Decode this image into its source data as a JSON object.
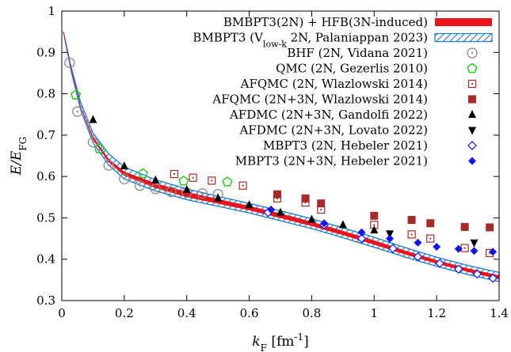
{
  "chart_data": {
    "type": "scatter",
    "title": "",
    "xlabel": {
      "var": "k",
      "sub": "F",
      "unit": " [fm",
      "sup": "-1",
      "close": "]"
    },
    "ylabel": {
      "var": "E/E",
      "sub": "FG"
    },
    "xlim": [
      0,
      1.4
    ],
    "ylim": [
      0.3,
      1.0
    ],
    "x_ticks": [
      0,
      0.2,
      0.4,
      0.6,
      0.8,
      1,
      1.2,
      1.4
    ],
    "x_tick_labels": [
      "0",
      "0.2",
      "0.4",
      "0.6",
      "0.8",
      "1",
      "1.2",
      "1.4"
    ],
    "y_ticks": [
      0.3,
      0.4,
      0.5,
      0.6,
      0.7,
      0.8,
      0.9,
      1
    ],
    "y_tick_labels": [
      "0.3",
      "0.4",
      "0.5",
      "0.6",
      "0.7",
      "0.8",
      "0.9",
      "1"
    ],
    "grid": false,
    "legend_position": "top-right",
    "bands": [
      {
        "name": "BMBPT3(2N) + HFB(3N-induced)",
        "color": "#e8141e",
        "style": "solid-band",
        "x": [
          0.005,
          0.03,
          0.06,
          0.1,
          0.15,
          0.2,
          0.3,
          0.4,
          0.5,
          0.6,
          0.7,
          0.8,
          0.9,
          1.0,
          1.1,
          1.2,
          1.3,
          1.4
        ],
        "upper": [
          0.95,
          0.86,
          0.77,
          0.695,
          0.642,
          0.611,
          0.583,
          0.562,
          0.545,
          0.528,
          0.51,
          0.49,
          0.468,
          0.445,
          0.42,
          0.397,
          0.377,
          0.36
        ],
        "lower": [
          0.95,
          0.86,
          0.77,
          0.69,
          0.636,
          0.603,
          0.573,
          0.551,
          0.535,
          0.519,
          0.5,
          0.481,
          0.459,
          0.436,
          0.412,
          0.39,
          0.37,
          0.352
        ]
      },
      {
        "name": "BMBPT3 (V",
        "name_sub": "low-k",
        "name_rest": " 2N, Palaniappan 2023)",
        "color": "#1f78d4",
        "style": "hatched-band",
        "x": [
          0.005,
          0.03,
          0.06,
          0.1,
          0.15,
          0.2,
          0.3,
          0.4,
          0.5,
          0.6,
          0.7,
          0.8,
          0.9,
          1.0,
          1.1,
          1.2,
          1.3,
          1.4
        ],
        "upper": [
          0.95,
          0.865,
          0.78,
          0.705,
          0.655,
          0.623,
          0.592,
          0.57,
          0.552,
          0.535,
          0.517,
          0.498,
          0.476,
          0.453,
          0.428,
          0.405,
          0.385,
          0.368
        ],
        "lower": [
          0.95,
          0.855,
          0.762,
          0.682,
          0.628,
          0.594,
          0.565,
          0.544,
          0.528,
          0.512,
          0.493,
          0.474,
          0.452,
          0.429,
          0.405,
          0.383,
          0.363,
          0.346
        ]
      }
    ],
    "series": [
      {
        "name": "BHF (2N, Vidana 2021)",
        "marker": "circle-dot",
        "color": "#8a8a8a",
        "x": [
          0.025,
          0.05,
          0.1,
          0.15,
          0.2,
          0.25,
          0.3,
          0.35,
          0.4,
          0.45,
          0.5
        ],
        "y": [
          0.875,
          0.757,
          0.683,
          0.627,
          0.594,
          0.578,
          0.57,
          0.563,
          0.561,
          0.559,
          0.557
        ]
      },
      {
        "name": "QMC (2N, Gezerlis 2010)",
        "marker": "pentagon-open",
        "color": "#1ec81e",
        "x": [
          0.045,
          0.12,
          0.26,
          0.39,
          0.53
        ],
        "y": [
          0.797,
          0.667,
          0.607,
          0.589,
          0.587
        ]
      },
      {
        "name": "AFQMC (2N, Wlazlowski 2014)",
        "marker": "square-open-dot",
        "color": "#a52a2a",
        "x": [
          0.36,
          0.42,
          0.48,
          0.58,
          0.69,
          0.78,
          0.83,
          1.0,
          1.12,
          1.18,
          1.29,
          1.37
        ],
        "y": [
          0.606,
          0.597,
          0.59,
          0.578,
          0.547,
          0.537,
          0.52,
          0.483,
          0.46,
          0.45,
          0.427,
          0.415
        ]
      },
      {
        "name": "AFQMC (2N+3N, Wlazlowski 2014)",
        "marker": "square-filled",
        "color": "#a52a2a",
        "x": [
          0.69,
          0.78,
          0.83,
          1.0,
          1.12,
          1.18,
          1.29,
          1.37
        ],
        "y": [
          0.557,
          0.547,
          0.535,
          0.505,
          0.495,
          0.487,
          0.478,
          0.477
        ]
      },
      {
        "name": "AFDMC (2N+3N, Gandolfi 2022)",
        "marker": "triangle-up",
        "color": "#000000",
        "x": [
          0.1,
          0.2,
          0.3,
          0.4,
          0.5,
          0.6,
          0.7,
          0.8,
          0.9,
          1.0
        ],
        "y": [
          0.737,
          0.625,
          0.591,
          0.568,
          0.547,
          0.531,
          0.513,
          0.496,
          0.483,
          0.47
        ]
      },
      {
        "name": "AFDMC (2N+3N, Lovato 2022)",
        "marker": "triangle-down",
        "color": "#000000",
        "x": [
          1.05,
          1.32
        ],
        "y": [
          0.462,
          0.44
        ]
      },
      {
        "name": "MBPT3 (2N, Hebeler 2021)",
        "marker": "diamond-open",
        "color": "#1414e6",
        "x": [
          0.66,
          0.84,
          0.96,
          1.06,
          1.14,
          1.21,
          1.27,
          1.33,
          1.38
        ],
        "y": [
          0.513,
          0.483,
          0.45,
          0.426,
          0.406,
          0.39,
          0.376,
          0.364,
          0.354
        ]
      },
      {
        "name": "MBPT3 (2N+3N, Hebeler 2021)",
        "marker": "diamond-filled",
        "color": "#1414e6",
        "x": [
          0.67,
          0.84,
          0.96,
          1.05,
          1.14,
          1.2,
          1.27,
          1.32,
          1.38
        ],
        "y": [
          0.52,
          0.487,
          0.465,
          0.45,
          0.44,
          0.43,
          0.425,
          0.42,
          0.418
        ]
      }
    ]
  }
}
